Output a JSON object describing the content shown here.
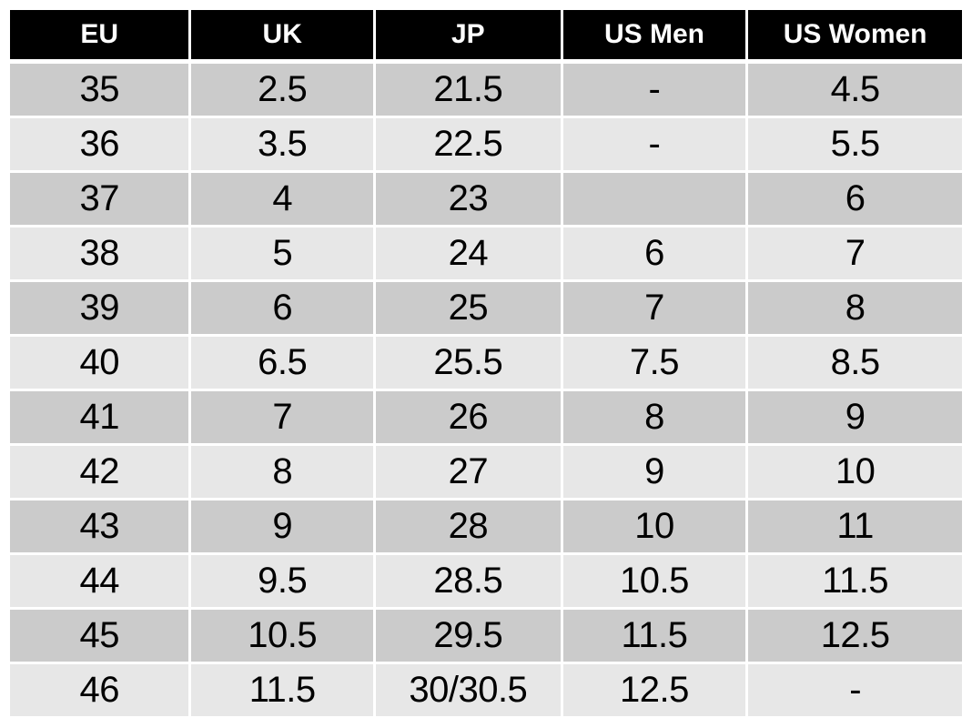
{
  "chart_data": {
    "type": "table",
    "columns": [
      "EU",
      "UK",
      "JP",
      "US Men",
      "US Women"
    ],
    "rows": [
      [
        "35",
        "2.5",
        "21.5",
        "-",
        "4.5"
      ],
      [
        "36",
        "3.5",
        "22.5",
        "-",
        "5.5"
      ],
      [
        "37",
        "4",
        "23",
        "",
        "6"
      ],
      [
        "38",
        "5",
        "24",
        "6",
        "7"
      ],
      [
        "39",
        "6",
        "25",
        "7",
        "8"
      ],
      [
        "40",
        "6.5",
        "25.5",
        "7.5",
        "8.5"
      ],
      [
        "41",
        "7",
        "26",
        "8",
        "9"
      ],
      [
        "42",
        "8",
        "27",
        "9",
        "10"
      ],
      [
        "43",
        "9",
        "28",
        "10",
        "11"
      ],
      [
        "44",
        "9.5",
        "28.5",
        "10.5",
        "11.5"
      ],
      [
        "45",
        "10.5",
        "29.5",
        "11.5",
        "12.5"
      ],
      [
        "46",
        "11.5",
        "30/30.5",
        "12.5",
        "-"
      ]
    ],
    "layout": {
      "grid": "white gaps between cells",
      "row_striping": "alternating dark/light starting dark",
      "column_width_pct": [
        19.0,
        19.3,
        19.6,
        19.4,
        22.7
      ]
    }
  },
  "colors": {
    "header_bg": "#000000",
    "header_text": "#ffffff",
    "row_dark": "#cbcbcb",
    "row_light": "#e7e7e7",
    "grid": "#ffffff",
    "cell_text": "#000000"
  }
}
